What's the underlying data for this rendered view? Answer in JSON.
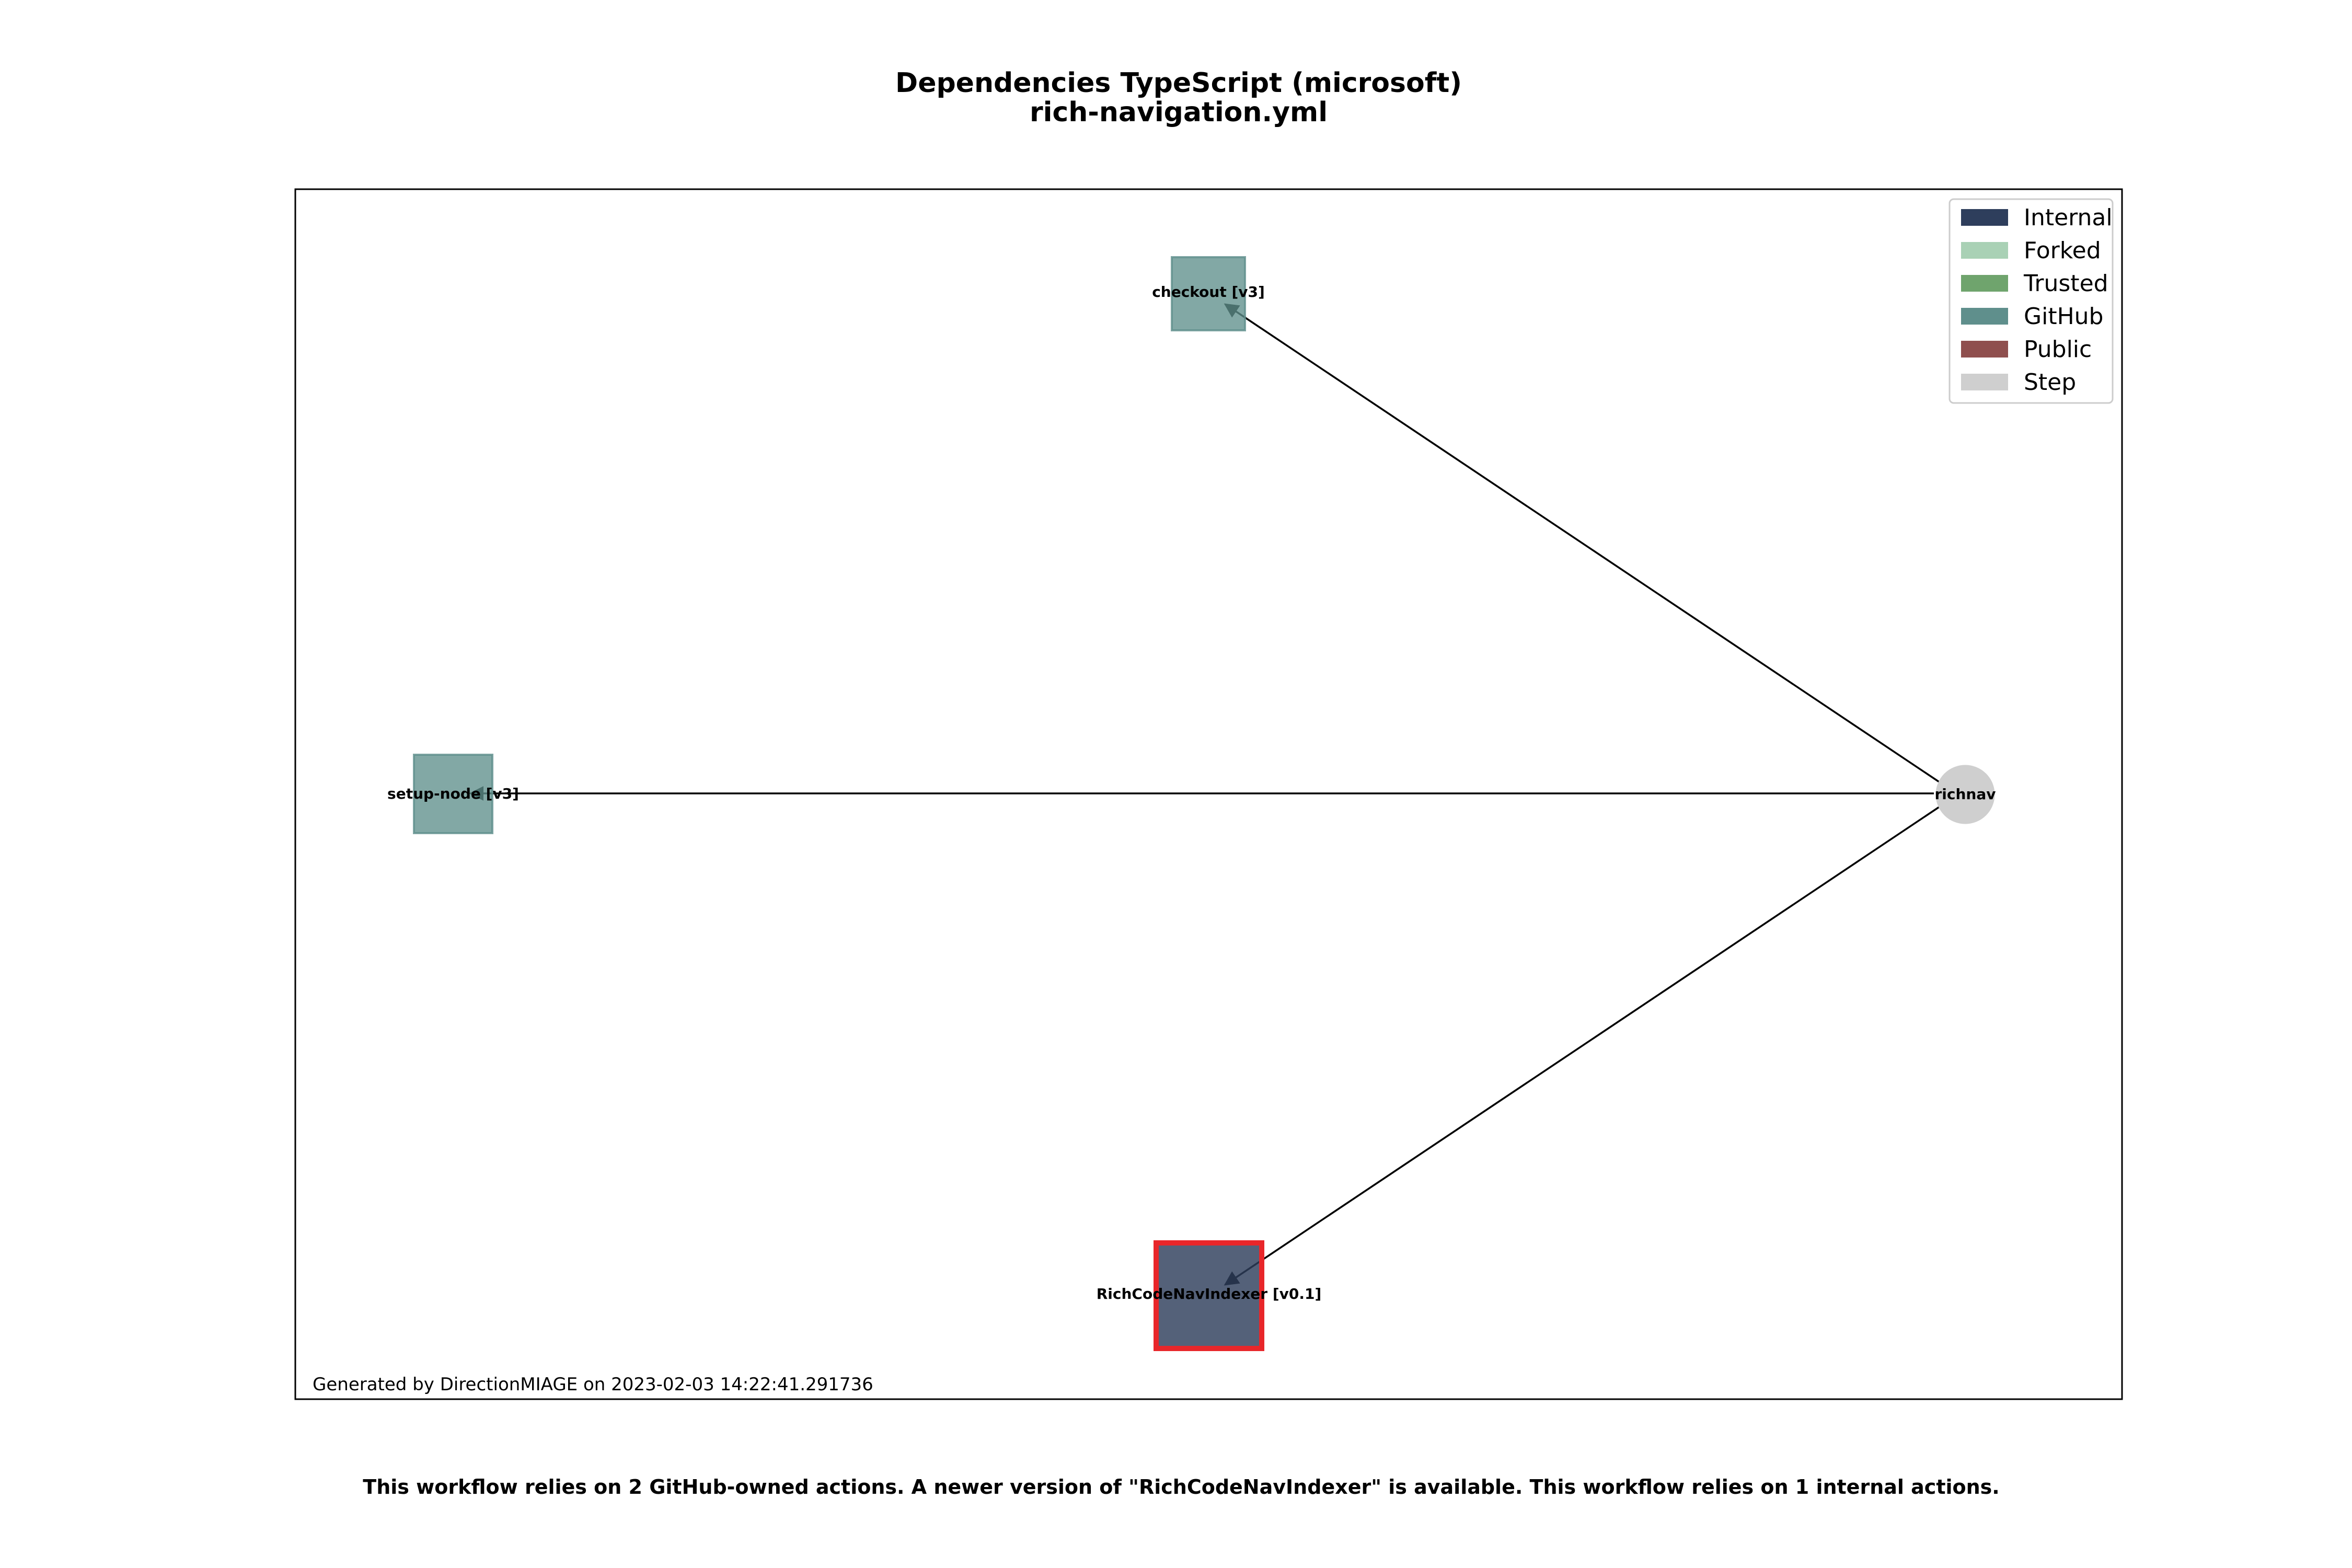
{
  "title": {
    "line1": "Dependencies TypeScript (microsoft)",
    "line2": "rich-navigation.yml"
  },
  "nodes": {
    "checkout": {
      "label": "checkout [v3]",
      "category": "GitHub",
      "color": "#5f8f8c",
      "outdated": false
    },
    "setup_node": {
      "label": "setup-node [v3]",
      "category": "GitHub",
      "color": "#5f8f8c",
      "outdated": false
    },
    "indexer": {
      "label": "RichCodeNavIndexer [v0.1]",
      "category": "Internal",
      "color": "#2e3e5c",
      "outdated": true,
      "outdated_border_color": "#e8262a"
    },
    "richnav": {
      "label": "richnav",
      "category": "Step",
      "color": "#cfcfcf"
    }
  },
  "edges": [
    {
      "from": "richnav",
      "to": "checkout"
    },
    {
      "from": "richnav",
      "to": "setup_node"
    },
    {
      "from": "richnav",
      "to": "indexer"
    }
  ],
  "legend": {
    "placement": "top-right",
    "items": [
      {
        "label": "Internal",
        "color": "#2e3e5c"
      },
      {
        "label": "Forked",
        "color": "#a9d1b5"
      },
      {
        "label": "Trusted",
        "color": "#6fa46d"
      },
      {
        "label": "GitHub",
        "color": "#5f8f8c"
      },
      {
        "label": "Public",
        "color": "#8f4f4e"
      },
      {
        "label": "Step",
        "color": "#cfcfcf"
      }
    ]
  },
  "footer": "Generated by DirectionMIAGE on 2023-02-03 14:22:41.291736",
  "summary": "This workflow relies on 2 GitHub-owned actions. A newer version of \"RichCodeNavIndexer\" is available. This workflow relies on 1 internal actions."
}
